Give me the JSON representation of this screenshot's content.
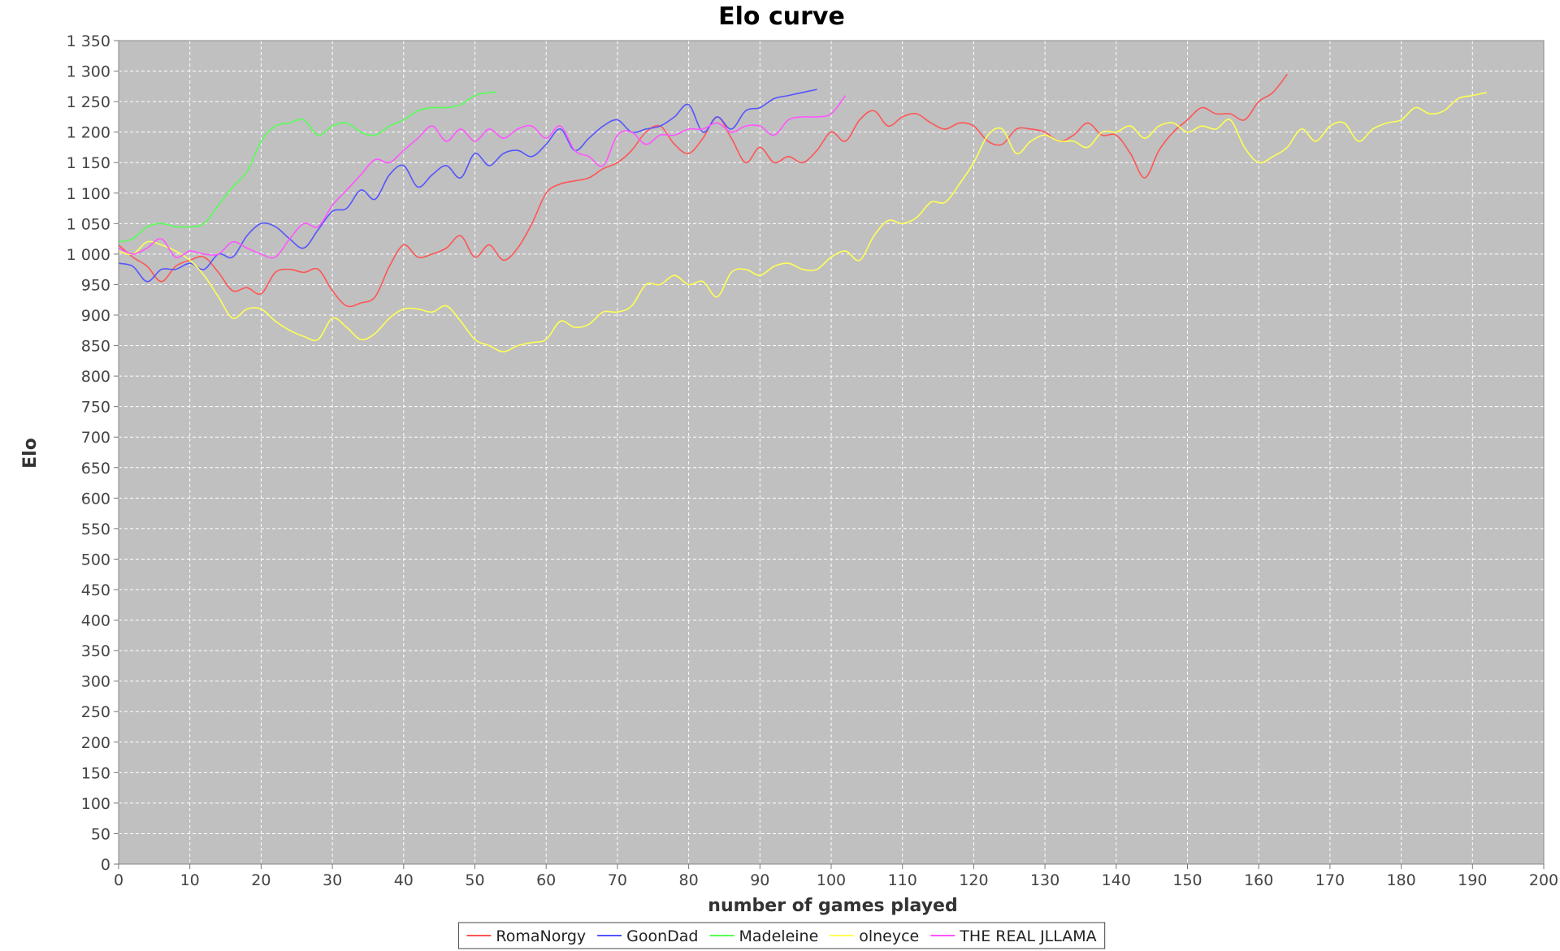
{
  "chart_data": {
    "type": "line",
    "title": "Elo curve",
    "xlabel": "number of games played",
    "ylabel": "Elo",
    "xlim": [
      0,
      200
    ],
    "ylim": [
      0,
      1350
    ],
    "x_ticks": [
      0,
      10,
      20,
      30,
      40,
      50,
      60,
      70,
      80,
      90,
      100,
      110,
      120,
      130,
      140,
      150,
      160,
      170,
      180,
      190,
      200
    ],
    "y_ticks": [
      0,
      50,
      100,
      150,
      200,
      250,
      300,
      350,
      400,
      450,
      500,
      550,
      600,
      650,
      700,
      750,
      800,
      850,
      900,
      950,
      1000,
      1050,
      1100,
      1150,
      1200,
      1250,
      1300,
      1350
    ],
    "y_tick_labels": [
      "0",
      "50",
      "100",
      "150",
      "200",
      "250",
      "300",
      "350",
      "400",
      "450",
      "500",
      "550",
      "600",
      "650",
      "700",
      "750",
      "800",
      "850",
      "900",
      "950",
      "1 000",
      "1 050",
      "1 100",
      "1 150",
      "1 200",
      "1 250",
      "1 300",
      "1 350"
    ],
    "grid": true,
    "legend_position": "bottom-center",
    "colors": {
      "plot_background": "#c0c0c0",
      "grid": "#ffffff",
      "RomaNorgy": "#ff5555",
      "GoonDad": "#5555ff",
      "Madeleine": "#55ff55",
      "olneyce": "#ffff55",
      "THE REAL JLLAMA": "#ff55ff"
    },
    "series": [
      {
        "name": "RomaNorgy",
        "x": [
          0,
          2,
          4,
          6,
          8,
          10,
          12,
          14,
          16,
          18,
          20,
          22,
          24,
          26,
          28,
          30,
          32,
          34,
          36,
          38,
          40,
          42,
          44,
          46,
          48,
          50,
          52,
          54,
          56,
          58,
          60,
          62,
          64,
          66,
          68,
          70,
          72,
          74,
          76,
          78,
          80,
          82,
          84,
          86,
          88,
          90,
          92,
          94,
          96,
          98,
          100,
          102,
          104,
          106,
          108,
          110,
          112,
          114,
          116,
          118,
          120,
          122,
          124,
          126,
          128,
          130,
          132,
          134,
          136,
          138,
          140,
          142,
          144,
          146,
          148,
          150,
          152,
          154,
          156,
          158,
          160,
          162,
          164
        ],
        "values": [
          1015,
          995,
          980,
          955,
          980,
          990,
          995,
          970,
          940,
          945,
          935,
          970,
          975,
          970,
          975,
          940,
          915,
          920,
          930,
          980,
          1015,
          995,
          1000,
          1010,
          1030,
          995,
          1015,
          990,
          1010,
          1050,
          1100,
          1115,
          1120,
          1125,
          1140,
          1150,
          1170,
          1200,
          1210,
          1180,
          1165,
          1190,
          1225,
          1190,
          1150,
          1175,
          1150,
          1160,
          1150,
          1170,
          1200,
          1185,
          1220,
          1235,
          1210,
          1225,
          1230,
          1215,
          1205,
          1215,
          1210,
          1185,
          1180,
          1205,
          1205,
          1200,
          1185,
          1195,
          1215,
          1195,
          1195,
          1165,
          1125,
          1170,
          1200,
          1220,
          1240,
          1230,
          1230,
          1220,
          1250,
          1265,
          1295
        ]
      },
      {
        "name": "GoonDad",
        "x": [
          0,
          2,
          4,
          6,
          8,
          10,
          12,
          14,
          16,
          18,
          20,
          22,
          24,
          26,
          28,
          30,
          32,
          34,
          36,
          38,
          40,
          42,
          44,
          46,
          48,
          50,
          52,
          54,
          56,
          58,
          60,
          62,
          64,
          66,
          68,
          70,
          72,
          74,
          76,
          78,
          80,
          82,
          84,
          86,
          88,
          90,
          92,
          94,
          96,
          98
        ],
        "values": [
          985,
          980,
          955,
          975,
          975,
          985,
          975,
          1000,
          995,
          1030,
          1050,
          1045,
          1025,
          1010,
          1040,
          1070,
          1075,
          1105,
          1090,
          1130,
          1145,
          1110,
          1130,
          1145,
          1125,
          1165,
          1145,
          1165,
          1170,
          1160,
          1180,
          1205,
          1170,
          1190,
          1210,
          1220,
          1200,
          1205,
          1210,
          1225,
          1245,
          1200,
          1225,
          1205,
          1235,
          1240,
          1255,
          1260,
          1265,
          1270
        ]
      },
      {
        "name": "Madeleine",
        "x": [
          0,
          2,
          4,
          6,
          8,
          10,
          12,
          14,
          16,
          18,
          20,
          22,
          24,
          26,
          28,
          30,
          32,
          34,
          36,
          38,
          40,
          42,
          44,
          46,
          48,
          50,
          52,
          53
        ],
        "values": [
          1020,
          1025,
          1045,
          1050,
          1045,
          1045,
          1050,
          1080,
          1110,
          1135,
          1185,
          1210,
          1215,
          1220,
          1195,
          1210,
          1215,
          1200,
          1195,
          1210,
          1220,
          1235,
          1240,
          1240,
          1245,
          1260,
          1265,
          1265
        ]
      },
      {
        "name": "olneyce",
        "x": [
          0,
          2,
          4,
          6,
          8,
          10,
          12,
          14,
          16,
          18,
          20,
          22,
          24,
          26,
          28,
          30,
          32,
          34,
          36,
          38,
          40,
          42,
          44,
          46,
          48,
          50,
          52,
          54,
          56,
          58,
          60,
          62,
          64,
          66,
          68,
          70,
          72,
          74,
          76,
          78,
          80,
          82,
          84,
          86,
          88,
          90,
          92,
          94,
          96,
          98,
          100,
          102,
          104,
          106,
          108,
          110,
          112,
          114,
          116,
          118,
          120,
          122,
          124,
          126,
          128,
          130,
          132,
          134,
          136,
          138,
          140,
          142,
          144,
          146,
          148,
          150,
          152,
          154,
          156,
          158,
          160,
          162,
          164,
          166,
          168,
          170,
          172,
          174,
          176,
          178,
          180,
          182,
          184,
          186,
          188,
          190,
          192
        ],
        "values": [
          1005,
          1000,
          1020,
          1015,
          1005,
          990,
          965,
          930,
          895,
          910,
          910,
          890,
          875,
          865,
          860,
          895,
          880,
          860,
          870,
          895,
          910,
          910,
          905,
          915,
          890,
          860,
          850,
          840,
          850,
          855,
          860,
          890,
          880,
          885,
          905,
          905,
          915,
          950,
          950,
          965,
          950,
          955,
          930,
          970,
          975,
          965,
          980,
          985,
          975,
          975,
          995,
          1005,
          990,
          1030,
          1055,
          1050,
          1060,
          1085,
          1085,
          1115,
          1150,
          1195,
          1205,
          1165,
          1185,
          1195,
          1185,
          1185,
          1175,
          1200,
          1200,
          1210,
          1190,
          1210,
          1215,
          1200,
          1210,
          1205,
          1220,
          1175,
          1150,
          1160,
          1175,
          1205,
          1185,
          1210,
          1215,
          1185,
          1205,
          1215,
          1220,
          1240,
          1230,
          1235,
          1255,
          1260,
          1265
        ]
      },
      {
        "name": "THE REAL JLLAMA",
        "x": [
          0,
          2,
          4,
          6,
          8,
          10,
          12,
          14,
          16,
          18,
          20,
          22,
          24,
          26,
          28,
          30,
          32,
          34,
          36,
          38,
          40,
          42,
          44,
          46,
          48,
          50,
          52,
          54,
          56,
          58,
          60,
          62,
          64,
          66,
          68,
          70,
          72,
          74,
          76,
          78,
          80,
          82,
          84,
          86,
          88,
          90,
          92,
          94,
          96,
          98,
          100,
          102
        ],
        "values": [
          1010,
          1000,
          1010,
          1025,
          995,
          1005,
          1000,
          1000,
          1020,
          1010,
          1000,
          995,
          1025,
          1050,
          1045,
          1080,
          1105,
          1130,
          1155,
          1150,
          1170,
          1190,
          1210,
          1185,
          1205,
          1185,
          1205,
          1190,
          1205,
          1210,
          1190,
          1210,
          1170,
          1160,
          1145,
          1195,
          1200,
          1180,
          1195,
          1195,
          1205,
          1205,
          1215,
          1200,
          1210,
          1210,
          1195,
          1220,
          1225,
          1225,
          1230,
          1260
        ]
      }
    ]
  }
}
